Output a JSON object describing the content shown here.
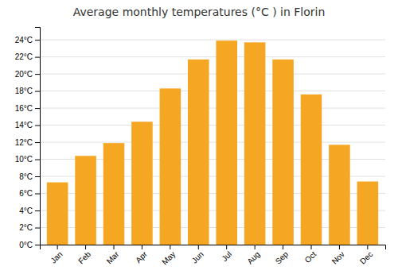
{
  "chart_data": {
    "type": "bar",
    "title": "Average monthly temperatures (°C ) in Florin",
    "categories": [
      "Jan",
      "Feb",
      "Mar",
      "Apr",
      "May",
      "Jun",
      "Jul",
      "Aug",
      "Sep",
      "Oct",
      "Nov",
      "Dec"
    ],
    "values": [
      7.3,
      10.4,
      11.9,
      14.4,
      18.3,
      21.7,
      23.9,
      23.7,
      21.7,
      17.6,
      11.7,
      7.4
    ],
    "color": "#F5A623",
    "ylim": [
      0,
      25.5
    ],
    "yticks": [
      {
        "value": 0,
        "label": "0°C"
      },
      {
        "value": 2,
        "label": "2°C"
      },
      {
        "value": 4,
        "label": "4°C"
      },
      {
        "value": 6,
        "label": "6°C"
      },
      {
        "value": 8,
        "label": "8°C"
      },
      {
        "value": 10,
        "label": "10°C"
      },
      {
        "value": 12,
        "label": "12°C"
      },
      {
        "value": 14,
        "label": "14°C"
      },
      {
        "value": 16,
        "label": "16°C"
      },
      {
        "value": 18,
        "label": "18°C"
      },
      {
        "value": 20,
        "label": "20°C"
      },
      {
        "value": 22,
        "label": "22°C"
      },
      {
        "value": 24,
        "label": "24°C"
      }
    ],
    "grid": true
  }
}
